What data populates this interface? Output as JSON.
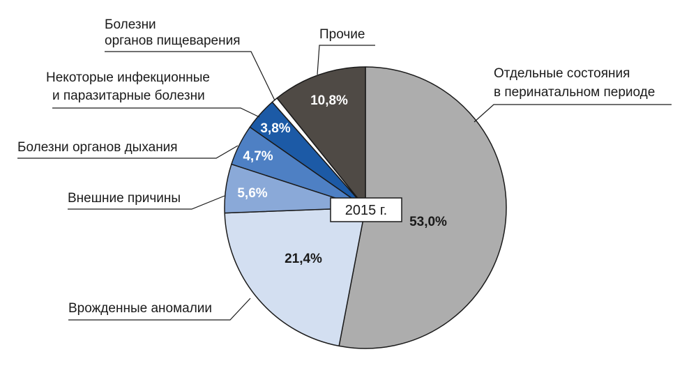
{
  "chart_data": {
    "type": "pie",
    "center_label": "2015 г.",
    "start_angle_deg": 0,
    "direction": "clockwise",
    "slices": [
      {
        "name": "Отдельные состояния|в перинатальном периоде",
        "value": 53.0,
        "value_label": "53,0%",
        "color": "#adadad",
        "value_color": "#1a1a1a"
      },
      {
        "name": "Врожденные аномалии",
        "value": 21.4,
        "value_label": "21,4%",
        "color": "#d3dff1",
        "value_color": "#1a1a1a"
      },
      {
        "name": "Внешние причины",
        "value": 5.6,
        "value_label": "5,6%",
        "color": "#8aa9d8",
        "value_color": "#ffffff"
      },
      {
        "name": "Болезни органов дыхания",
        "value": 4.7,
        "value_label": "4,7%",
        "color": "#4e80c4",
        "value_color": "#ffffff"
      },
      {
        "name": "Некоторые инфекционные|и паразитарные болезни",
        "value": 3.8,
        "value_label": "3,8%",
        "color": "#1c5aa6",
        "value_color": "#ffffff"
      },
      {
        "name": "Болезни|органов пищеварения",
        "value": 0.7,
        "value_label": "",
        "color": "#ffffff",
        "value_color": "#1a1a1a"
      },
      {
        "name": "Прочие",
        "value": 10.8,
        "value_label": "10,8%",
        "color": "#4f4a45",
        "value_color": "#ffffff"
      }
    ]
  }
}
